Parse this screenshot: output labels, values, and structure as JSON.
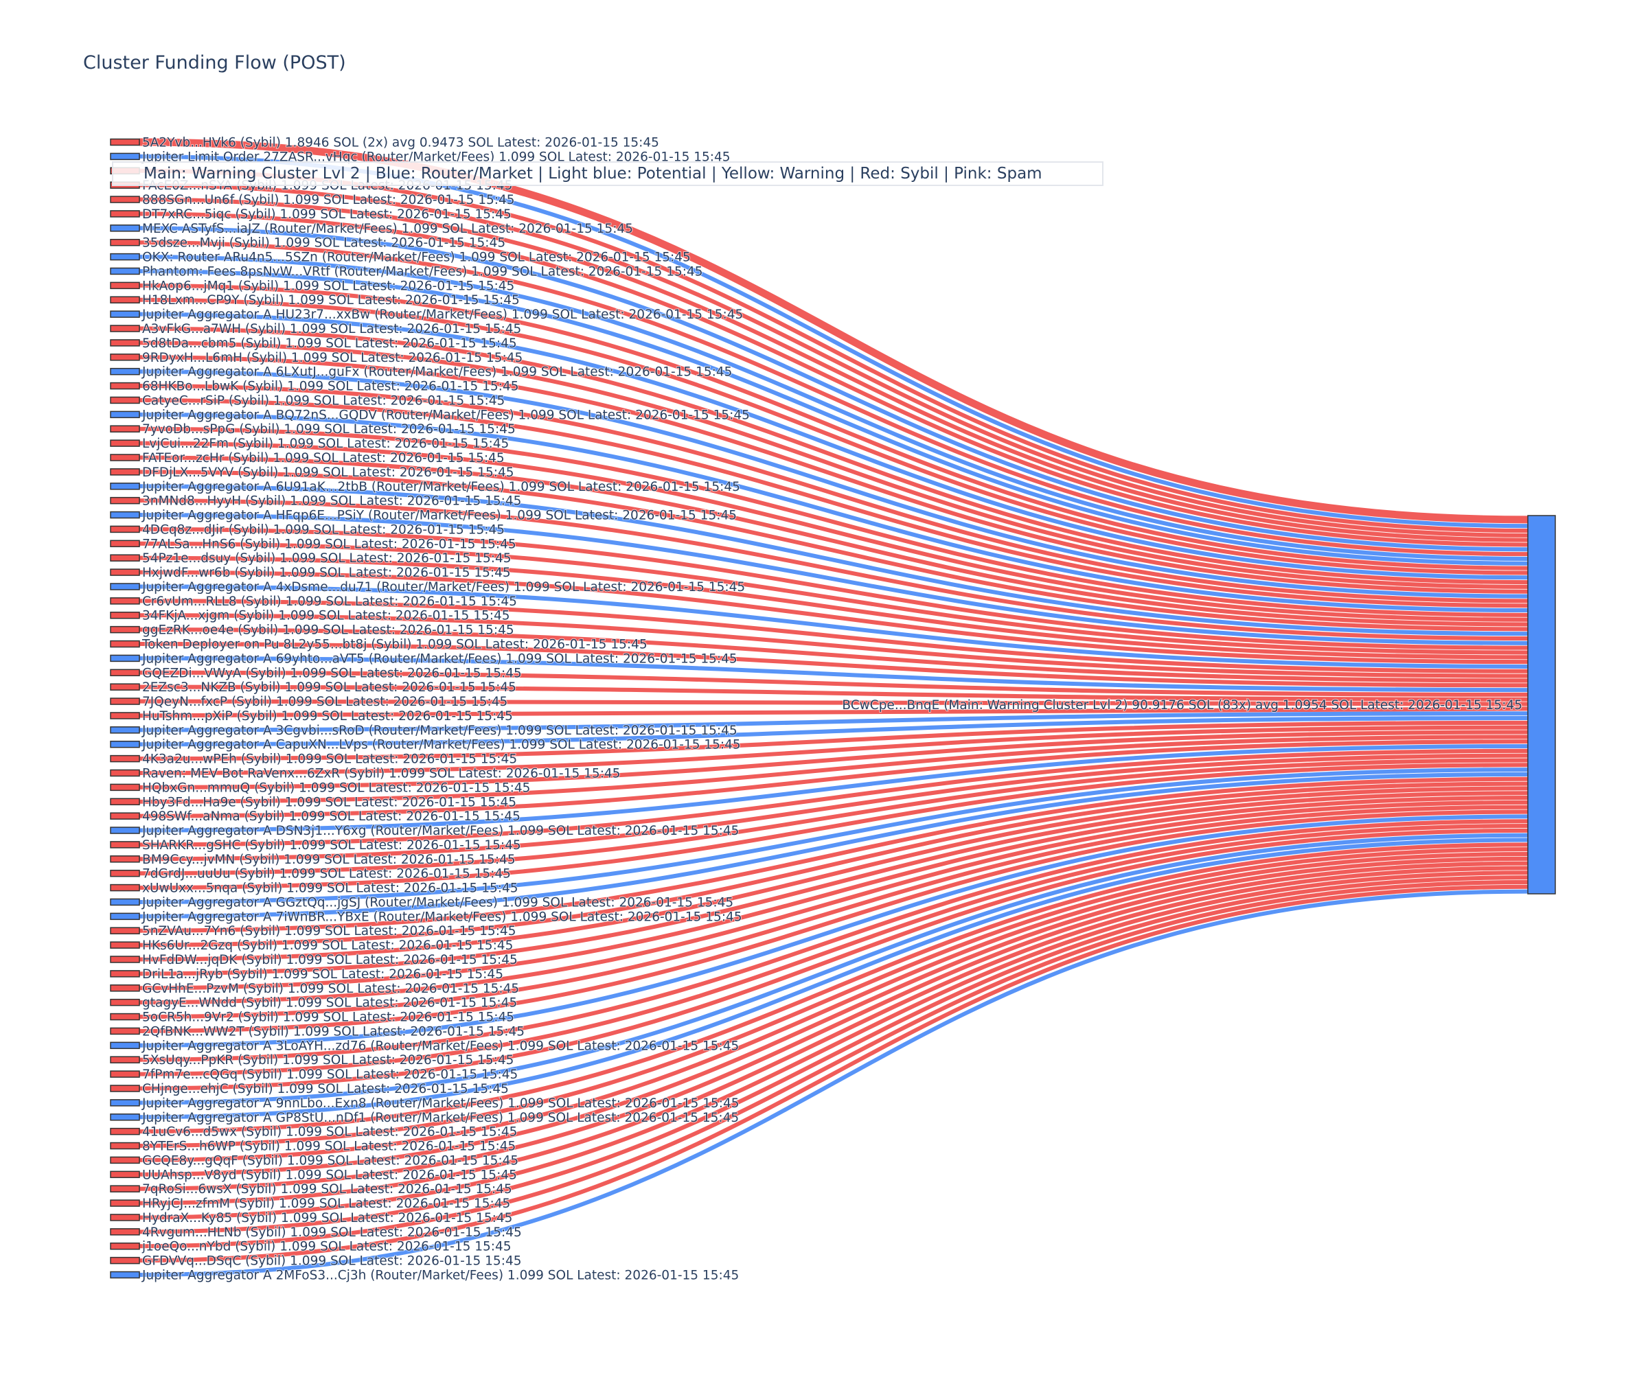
{
  "title": "Cluster Funding Flow (POST)",
  "legend_note": "Main: Warning Cluster Lvl 2  |  Blue: Router/Market | Light blue: Potential | Yellow: Warning | Red: Sybil | Pink: Spam",
  "colors": {
    "sybil": "#ef5350",
    "router": "#4f8ef7",
    "main": "#4f8ef7",
    "text": "#2a3f5f"
  },
  "chart_data": {
    "type": "sankey",
    "title": "Cluster Funding Flow (POST)",
    "target": {
      "label": "BCwCpe...BnqE (Main: Warning Cluster Lvl 2) 90.9176 SOL (83x) avg 1.0954 SOL Latest: 2026-01-15 15:45",
      "category": "main",
      "total": 90.9176
    },
    "sources": [
      {
        "label": "5A2Yvb...HVk6 (Sybil) 1.8946 SOL (2x) avg 0.9473 SOL Latest: 2026-01-15 15:45",
        "category": "sybil",
        "value": 1.8946
      },
      {
        "label": "Jupiter Limit Order  27ZASR...vHqc (Router/Market/Fees) 1.099 SOL Latest: 2026-01-15 15:45",
        "category": "router",
        "value": 1.099
      },
      {
        "label": "",
        "category": "sybil",
        "value": 1.099
      },
      {
        "label": "FAcE0Z...nSYA (Sybil) 1.099 SOL Latest: 2026-01-15 15:45",
        "category": "sybil",
        "value": 1.099
      },
      {
        "label": "888SGn...Un6f (Sybil) 1.099 SOL Latest: 2026-01-15 15:45",
        "category": "sybil",
        "value": 1.099
      },
      {
        "label": "DT7xRC...5iqc (Sybil) 1.099 SOL Latest: 2026-01-15 15:45",
        "category": "sybil",
        "value": 1.099
      },
      {
        "label": "MEXC ASTyfS...iaJZ (Router/Market/Fees) 1.099 SOL Latest: 2026-01-15 15:45",
        "category": "router",
        "value": 1.099
      },
      {
        "label": "35dsze...Mvji (Sybil) 1.099 SOL Latest: 2026-01-15 15:45",
        "category": "sybil",
        "value": 1.099
      },
      {
        "label": "OKX: Router ARu4n5...5SZn (Router/Market/Fees) 1.099 SOL Latest: 2026-01-15 15:45",
        "category": "router",
        "value": 1.099
      },
      {
        "label": "Phantom: Fees 8psNvW...VRtf (Router/Market/Fees) 1.099 SOL Latest: 2026-01-15 15:45",
        "category": "router",
        "value": 1.099
      },
      {
        "label": "HkAop6...jMq1 (Sybil) 1.099 SOL Latest: 2026-01-15 15:45",
        "category": "sybil",
        "value": 1.099
      },
      {
        "label": "H18Lxm...CP9Y (Sybil) 1.099 SOL Latest: 2026-01-15 15:45",
        "category": "sybil",
        "value": 1.099
      },
      {
        "label": "Jupiter Aggregator A HU23r7...xxBw (Router/Market/Fees) 1.099 SOL Latest: 2026-01-15 15:45",
        "category": "router",
        "value": 1.099
      },
      {
        "label": "A3vFkG...a7WH (Sybil) 1.099 SOL Latest: 2026-01-15 15:45",
        "category": "sybil",
        "value": 1.099
      },
      {
        "label": "5d8tDa...cbm5 (Sybil) 1.099 SOL Latest: 2026-01-15 15:45",
        "category": "sybil",
        "value": 1.099
      },
      {
        "label": "9RDyxH...L6mH (Sybil) 1.099 SOL Latest: 2026-01-15 15:45",
        "category": "sybil",
        "value": 1.099
      },
      {
        "label": "Jupiter Aggregator A 6LXutJ...guFx (Router/Market/Fees) 1.099 SOL Latest: 2026-01-15 15:45",
        "category": "router",
        "value": 1.099
      },
      {
        "label": "68HKBo...LbwK (Sybil) 1.099 SOL Latest: 2026-01-15 15:45",
        "category": "sybil",
        "value": 1.099
      },
      {
        "label": "CatyeC...rSiP (Sybil) 1.099 SOL Latest: 2026-01-15 15:45",
        "category": "sybil",
        "value": 1.099
      },
      {
        "label": "Jupiter Aggregator A BQ72nS...GQDV (Router/Market/Fees) 1.099 SOL Latest: 2026-01-15 15:45",
        "category": "router",
        "value": 1.099
      },
      {
        "label": "7yvoDb...sPpG (Sybil) 1.099 SOL Latest: 2026-01-15 15:45",
        "category": "sybil",
        "value": 1.099
      },
      {
        "label": "LvjCui...22Fm (Sybil) 1.099 SOL Latest: 2026-01-15 15:45",
        "category": "sybil",
        "value": 1.099
      },
      {
        "label": "FATEor...zcHr (Sybil) 1.099 SOL Latest: 2026-01-15 15:45",
        "category": "sybil",
        "value": 1.099
      },
      {
        "label": "DFDjLX...5VYV (Sybil) 1.099 SOL Latest: 2026-01-15 15:45",
        "category": "sybil",
        "value": 1.099
      },
      {
        "label": "Jupiter Aggregator A 6U91aK...2tbB (Router/Market/Fees) 1.099 SOL Latest: 2026-01-15 15:45",
        "category": "router",
        "value": 1.099
      },
      {
        "label": "3nMNd8...HyyH (Sybil) 1.099 SOL Latest: 2026-01-15 15:45",
        "category": "sybil",
        "value": 1.099
      },
      {
        "label": "Jupiter Aggregator A HFqp6E...PSiY (Router/Market/Fees) 1.099 SOL Latest: 2026-01-15 15:45",
        "category": "router",
        "value": 1.099
      },
      {
        "label": "4DCq8z...dJir (Sybil) 1.099 SOL Latest: 2026-01-15 15:45",
        "category": "sybil",
        "value": 1.099
      },
      {
        "label": "77ALSa...HnS6 (Sybil) 1.099 SOL Latest: 2026-01-15 15:45",
        "category": "sybil",
        "value": 1.099
      },
      {
        "label": "54Pz1e...dsuy (Sybil) 1.099 SOL Latest: 2026-01-15 15:45",
        "category": "sybil",
        "value": 1.099
      },
      {
        "label": "HxjwdF...wr6b (Sybil) 1.099 SOL Latest: 2026-01-15 15:45",
        "category": "sybil",
        "value": 1.099
      },
      {
        "label": "Jupiter Aggregator A 4xDsme...du71 (Router/Market/Fees) 1.099 SOL Latest: 2026-01-15 15:45",
        "category": "router",
        "value": 1.099
      },
      {
        "label": "Cr6vUm...RLL8 (Sybil) 1.099 SOL Latest: 2026-01-15 15:45",
        "category": "sybil",
        "value": 1.099
      },
      {
        "label": "34FKjA...xjgm (Sybil) 1.099 SOL Latest: 2026-01-15 15:45",
        "category": "sybil",
        "value": 1.099
      },
      {
        "label": "ggEzRK...oe4e (Sybil) 1.099 SOL Latest: 2026-01-15 15:45",
        "category": "sybil",
        "value": 1.099
      },
      {
        "label": "Token Deployer on Pu 8L2y55...bt8j (Sybil) 1.099 SOL Latest: 2026-01-15 15:45",
        "category": "sybil",
        "value": 1.099
      },
      {
        "label": "Jupiter Aggregator A 69yhto...aVT5 (Router/Market/Fees) 1.099 SOL Latest: 2026-01-15 15:45",
        "category": "router",
        "value": 1.099
      },
      {
        "label": "GQEZDi...VWyA (Sybil) 1.099 SOL Latest: 2026-01-15 15:45",
        "category": "sybil",
        "value": 1.099
      },
      {
        "label": "2EZsc3...NKZB (Sybil) 1.099 SOL Latest: 2026-01-15 15:45",
        "category": "sybil",
        "value": 1.099
      },
      {
        "label": "7JQeyN...fxcP (Sybil) 1.099 SOL Latest: 2026-01-15 15:45",
        "category": "sybil",
        "value": 1.099
      },
      {
        "label": "HuTshm...pXiP (Sybil) 1.099 SOL Latest: 2026-01-15 15:45",
        "category": "sybil",
        "value": 1.099
      },
      {
        "label": "Jupiter Aggregator A 3Cgvbi...sRoD (Router/Market/Fees) 1.099 SOL Latest: 2026-01-15 15:45",
        "category": "router",
        "value": 1.099
      },
      {
        "label": "Jupiter Aggregator A CapuXN...LVps (Router/Market/Fees) 1.099 SOL Latest: 2026-01-15 15:45",
        "category": "router",
        "value": 1.099
      },
      {
        "label": "4K3a2u...wPEh (Sybil) 1.099 SOL Latest: 2026-01-15 15:45",
        "category": "sybil",
        "value": 1.099
      },
      {
        "label": "Raven: MEV Bot RaVenx...6ZxR (Sybil) 1.099 SOL Latest: 2026-01-15 15:45",
        "category": "sybil",
        "value": 1.099
      },
      {
        "label": "HQbxGn...mmuQ (Sybil) 1.099 SOL Latest: 2026-01-15 15:45",
        "category": "sybil",
        "value": 1.099
      },
      {
        "label": "Hby3Fd...Ha9e (Sybil) 1.099 SOL Latest: 2026-01-15 15:45",
        "category": "sybil",
        "value": 1.099
      },
      {
        "label": "498SWf...aNma (Sybil) 1.099 SOL Latest: 2026-01-15 15:45",
        "category": "sybil",
        "value": 1.099
      },
      {
        "label": "Jupiter Aggregator A DSN3j1...Y6xg (Router/Market/Fees) 1.099 SOL Latest: 2026-01-15 15:45",
        "category": "router",
        "value": 1.099
      },
      {
        "label": "SHARKR...gSHC (Sybil) 1.099 SOL Latest: 2026-01-15 15:45",
        "category": "sybil",
        "value": 1.099
      },
      {
        "label": "BM9Ccy...jvMN (Sybil) 1.099 SOL Latest: 2026-01-15 15:45",
        "category": "sybil",
        "value": 1.099
      },
      {
        "label": "7dGrdJ...uuUu (Sybil) 1.099 SOL Latest: 2026-01-15 15:45",
        "category": "sybil",
        "value": 1.099
      },
      {
        "label": "xUwUxx...5nqa (Sybil) 1.099 SOL Latest: 2026-01-15 15:45",
        "category": "sybil",
        "value": 1.099
      },
      {
        "label": "Jupiter Aggregator A GGztQq...jgSJ (Router/Market/Fees) 1.099 SOL Latest: 2026-01-15 15:45",
        "category": "router",
        "value": 1.099
      },
      {
        "label": "Jupiter Aggregator A 7iWnBR...YBxE (Router/Market/Fees) 1.099 SOL Latest: 2026-01-15 15:45",
        "category": "router",
        "value": 1.099
      },
      {
        "label": "5nZVAu...7Yn6 (Sybil) 1.099 SOL Latest: 2026-01-15 15:45",
        "category": "sybil",
        "value": 1.099
      },
      {
        "label": "HKs6Ur...2Gzq (Sybil) 1.099 SOL Latest: 2026-01-15 15:45",
        "category": "sybil",
        "value": 1.099
      },
      {
        "label": "HvFdDW...jqDK (Sybil) 1.099 SOL Latest: 2026-01-15 15:45",
        "category": "sybil",
        "value": 1.099
      },
      {
        "label": "DriL1a...jRyb (Sybil) 1.099 SOL Latest: 2026-01-15 15:45",
        "category": "sybil",
        "value": 1.099
      },
      {
        "label": "GCvHhE...PzvM (Sybil) 1.099 SOL Latest: 2026-01-15 15:45",
        "category": "sybil",
        "value": 1.099
      },
      {
        "label": "gtagyE...WNdd (Sybil) 1.099 SOL Latest: 2026-01-15 15:45",
        "category": "sybil",
        "value": 1.099
      },
      {
        "label": "5oCR5h...9Vr2 (Sybil) 1.099 SOL Latest: 2026-01-15 15:45",
        "category": "sybil",
        "value": 1.099
      },
      {
        "label": "2QfBNK...WW2T (Sybil) 1.099 SOL Latest: 2026-01-15 15:45",
        "category": "sybil",
        "value": 1.099
      },
      {
        "label": "Jupiter Aggregator A 3LoAYH...zd76 (Router/Market/Fees) 1.099 SOL Latest: 2026-01-15 15:45",
        "category": "router",
        "value": 1.099
      },
      {
        "label": "5XsUqy...PpKR (Sybil) 1.099 SOL Latest: 2026-01-15 15:45",
        "category": "sybil",
        "value": 1.099
      },
      {
        "label": "7fPm7e...cQGq (Sybil) 1.099 SOL Latest: 2026-01-15 15:45",
        "category": "sybil",
        "value": 1.099
      },
      {
        "label": "CHjnge...ehjC (Sybil) 1.099 SOL Latest: 2026-01-15 15:45",
        "category": "sybil",
        "value": 1.099
      },
      {
        "label": "Jupiter Aggregator A 9nnLbo...Exn8 (Router/Market/Fees) 1.099 SOL Latest: 2026-01-15 15:45",
        "category": "router",
        "value": 1.099
      },
      {
        "label": "Jupiter Aggregator A GP8StU...nDf1 (Router/Market/Fees) 1.099 SOL Latest: 2026-01-15 15:45",
        "category": "router",
        "value": 1.099
      },
      {
        "label": "41uCv6...d5wx (Sybil) 1.099 SOL Latest: 2026-01-15 15:45",
        "category": "sybil",
        "value": 1.099
      },
      {
        "label": "8YTErS...h6WP (Sybil) 1.099 SOL Latest: 2026-01-15 15:45",
        "category": "sybil",
        "value": 1.099
      },
      {
        "label": "GCQE8y...gQqF (Sybil) 1.099 SOL Latest: 2026-01-15 15:45",
        "category": "sybil",
        "value": 1.099
      },
      {
        "label": "UUAhsp...V8yd (Sybil) 1.099 SOL Latest: 2026-01-15 15:45",
        "category": "sybil",
        "value": 1.099
      },
      {
        "label": "7qRoSi...6wsX (Sybil) 1.099 SOL Latest: 2026-01-15 15:45",
        "category": "sybil",
        "value": 1.099
      },
      {
        "label": "HRyjCJ...zfmM (Sybil) 1.099 SOL Latest: 2026-01-15 15:45",
        "category": "sybil",
        "value": 1.099
      },
      {
        "label": "HydraX...Ky85 (Sybil) 1.099 SOL Latest: 2026-01-15 15:45",
        "category": "sybil",
        "value": 1.099
      },
      {
        "label": "4Rvgum...HLNb (Sybil) 1.099 SOL Latest: 2026-01-15 15:45",
        "category": "sybil",
        "value": 1.099
      },
      {
        "label": "j1oeQo...nYbd (Sybil) 1.099 SOL Latest: 2026-01-15 15:45",
        "category": "sybil",
        "value": 1.099
      },
      {
        "label": "GFDVVq...DSqC (Sybil) 1.099 SOL Latest: 2026-01-15 15:45",
        "category": "sybil",
        "value": 1.099
      },
      {
        "label": "Jupiter Aggregator A 2MFoS3...Cj3h (Router/Market/Fees) 1.099 SOL Latest: 2026-01-15 15:45",
        "category": "router",
        "value": 1.099
      }
    ]
  }
}
